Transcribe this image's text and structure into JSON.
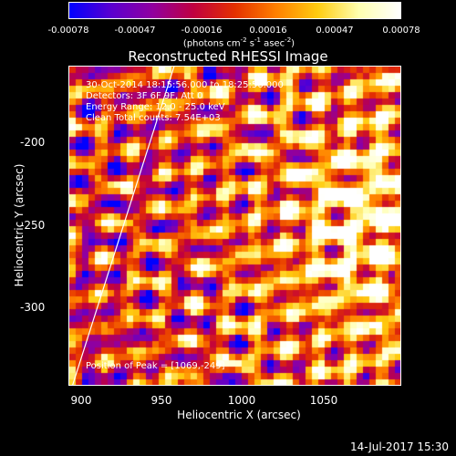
{
  "colorbar": {
    "ticks": [
      "-0.00078",
      "-0.00047",
      "-0.00016",
      "0.00016",
      "0.00047",
      "0.00078"
    ],
    "unit_label": "(photons cm",
    "unit_exp1": "-2",
    "unit_mid1": " s",
    "unit_exp2": "-1",
    "unit_mid2": " asec",
    "unit_exp3": "-2",
    "unit_end": ")",
    "colors": [
      "#0000ff",
      "#5a00d0",
      "#9000a0",
      "#c00040",
      "#e43000",
      "#ff8000",
      "#ffcc10",
      "#ffffb0",
      "#ffffff"
    ]
  },
  "chart_data": {
    "type": "heatmap",
    "title": "Reconstructed RHESSI Image",
    "xlabel": "Heliocentric X (arcsec)",
    "ylabel": "Heliocentric Y (arcsec)",
    "xlim": [
      892,
      1088
    ],
    "ylim": [
      -349,
      -155
    ],
    "xticks": [
      900,
      950,
      1000,
      1050
    ],
    "yticks": [
      -200,
      -250,
      -300
    ],
    "value_range": [
      -0.00078,
      0.00078
    ],
    "annotations": [
      "30-Oct-2014 18:15:56.000 to 18:25:56.000",
      "Detectors: 3F 6F 9F, Att 0",
      "Energy Range: 12.0 - 25.0 keV",
      "Clean    Total counts: 7.54E+03"
    ],
    "peak_label": "Position of Peak = [1069,-249]",
    "peak": [
      1069,
      -249
    ],
    "limb_line": [
      [
        894,
        -349
      ],
      [
        954,
        -155
      ]
    ]
  },
  "footer": {
    "timestamp": "14-Jul-2017 15:30"
  }
}
